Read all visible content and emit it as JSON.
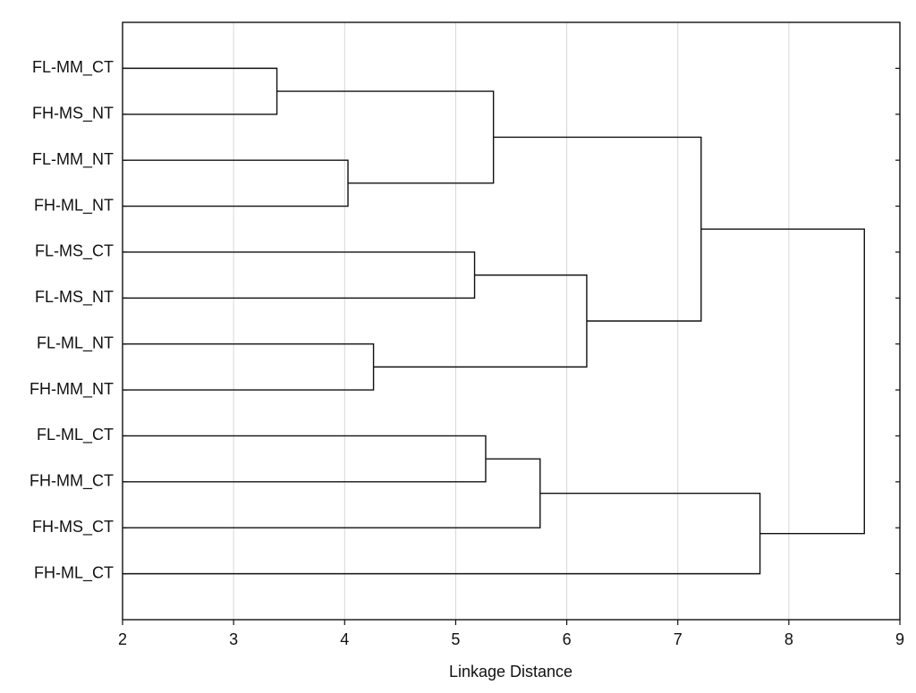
{
  "chart_data": {
    "type": "dendrogram",
    "xlabel": "Linkage Distance",
    "leaves": [
      "FL-MM_CT",
      "FH-MS_NT",
      "FL-MM_NT",
      "FH-ML_NT",
      "FL-MS_CT",
      "FL-MS_NT",
      "FL-ML_NT",
      "FH-MM_NT",
      "FL-ML_CT",
      "FH-MM_CT",
      "FH-MS_CT",
      "FH-ML_CT"
    ],
    "merges": [
      {
        "children": [
          0,
          1
        ],
        "distance": 3.39
      },
      {
        "children": [
          2,
          3
        ],
        "distance": 4.03
      },
      {
        "children": [
          6,
          7
        ],
        "distance": 4.26
      },
      {
        "children": [
          4,
          5
        ],
        "distance": 5.17
      },
      {
        "children": [
          8,
          9
        ],
        "distance": 5.27
      },
      {
        "children": [
          12,
          13
        ],
        "distance": 5.34
      },
      {
        "children": [
          16,
          10
        ],
        "distance": 5.76
      },
      {
        "children": [
          15,
          14
        ],
        "distance": 6.18
      },
      {
        "children": [
          17,
          19
        ],
        "distance": 7.21
      },
      {
        "children": [
          18,
          11
        ],
        "distance": 7.74
      },
      {
        "children": [
          20,
          21
        ],
        "distance": 8.68
      }
    ],
    "xlim": [
      2,
      9
    ],
    "xticks": [
      2,
      3,
      4,
      5,
      6,
      7,
      8,
      9
    ],
    "grid": true,
    "color": "#111111"
  }
}
